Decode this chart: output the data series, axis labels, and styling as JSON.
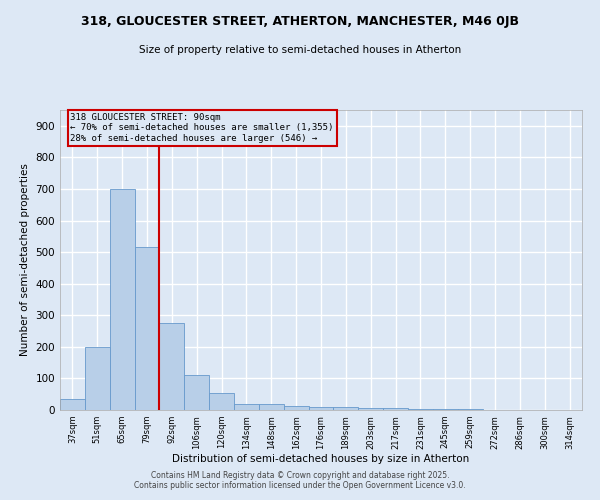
{
  "title1": "318, GLOUCESTER STREET, ATHERTON, MANCHESTER, M46 0JB",
  "title2": "Size of property relative to semi-detached houses in Atherton",
  "xlabel": "Distribution of semi-detached houses by size in Atherton",
  "ylabel": "Number of semi-detached properties",
  "categories": [
    "37sqm",
    "51sqm",
    "65sqm",
    "79sqm",
    "92sqm",
    "106sqm",
    "120sqm",
    "134sqm",
    "148sqm",
    "162sqm",
    "176sqm",
    "189sqm",
    "203sqm",
    "217sqm",
    "231sqm",
    "245sqm",
    "259sqm",
    "272sqm",
    "286sqm",
    "300sqm",
    "314sqm"
  ],
  "values": [
    35,
    200,
    700,
    515,
    275,
    110,
    55,
    20,
    18,
    12,
    10,
    8,
    6,
    5,
    2,
    2,
    2,
    1,
    1,
    1,
    1
  ],
  "bar_color": "#b8cfe8",
  "bar_edge_color": "#6699cc",
  "reference_line_color": "#cc0000",
  "annotation_title": "318 GLOUCESTER STREET: 90sqm",
  "annotation_line1": "← 70% of semi-detached houses are smaller (1,355)",
  "annotation_line2": "28% of semi-detached houses are larger (546) →",
  "annotation_box_color": "#cc0000",
  "ylim": [
    0,
    950
  ],
  "yticks": [
    0,
    100,
    200,
    300,
    400,
    500,
    600,
    700,
    800,
    900
  ],
  "background_color": "#dde8f5",
  "grid_color": "#ffffff",
  "footer1": "Contains HM Land Registry data © Crown copyright and database right 2025.",
  "footer2": "Contains public sector information licensed under the Open Government Licence v3.0."
}
